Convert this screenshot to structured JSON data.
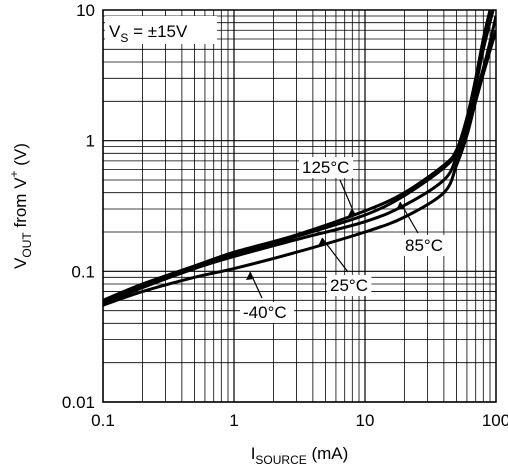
{
  "chart_data": {
    "type": "line",
    "x_scale": "log",
    "y_scale": "log",
    "xlim": [
      0.1,
      100
    ],
    "ylim": [
      0.01,
      10
    ],
    "xticks": [
      "0.1",
      "1",
      "10",
      "100"
    ],
    "yticks": [
      "0.01",
      "0.1",
      "1",
      "10"
    ],
    "xlabel": {
      "main": "I",
      "sub": "SOURCE",
      "suffix": " (mA)"
    },
    "ylabel": {
      "main": "V",
      "sub": "OUT",
      "middle": " from V",
      "sup": "+",
      "suffix": " (V)"
    },
    "grid": true,
    "annotation": {
      "main": "V",
      "sub": "S",
      "suffix": " = ±15V"
    },
    "series": [
      {
        "name": "125°C",
        "color": "#000000",
        "points": [
          [
            0.1,
            0.06
          ],
          [
            0.2,
            0.08
          ],
          [
            0.5,
            0.11
          ],
          [
            1,
            0.14
          ],
          [
            3,
            0.19
          ],
          [
            10,
            0.29
          ],
          [
            20,
            0.4
          ],
          [
            40,
            0.65
          ],
          [
            50,
            0.85
          ],
          [
            60,
            1.5
          ],
          [
            70,
            3.0
          ],
          [
            80,
            6.0
          ],
          [
            90,
            10.0
          ]
        ]
      },
      {
        "name": "85°C",
        "color": "#000000",
        "points": [
          [
            0.1,
            0.058
          ],
          [
            0.2,
            0.078
          ],
          [
            0.5,
            0.108
          ],
          [
            1,
            0.135
          ],
          [
            3,
            0.185
          ],
          [
            10,
            0.27
          ],
          [
            20,
            0.38
          ],
          [
            40,
            0.62
          ],
          [
            50,
            0.82
          ],
          [
            60,
            1.4
          ],
          [
            70,
            2.6
          ],
          [
            80,
            5.0
          ],
          [
            95,
            10.0
          ]
        ]
      },
      {
        "name": "25°C",
        "color": "#000000",
        "points": [
          [
            0.1,
            0.056
          ],
          [
            0.2,
            0.075
          ],
          [
            0.5,
            0.105
          ],
          [
            1,
            0.13
          ],
          [
            3,
            0.175
          ],
          [
            10,
            0.24
          ],
          [
            20,
            0.32
          ],
          [
            40,
            0.5
          ],
          [
            50,
            0.75
          ],
          [
            60,
            1.2
          ],
          [
            70,
            2.2
          ],
          [
            85,
            4.5
          ],
          [
            100,
            9.0
          ]
        ]
      },
      {
        "name": "-40°C",
        "color": "#000000",
        "points": [
          [
            0.1,
            0.055
          ],
          [
            0.2,
            0.07
          ],
          [
            0.5,
            0.09
          ],
          [
            1,
            0.105
          ],
          [
            3,
            0.14
          ],
          [
            10,
            0.2
          ],
          [
            20,
            0.26
          ],
          [
            40,
            0.4
          ],
          [
            50,
            0.65
          ],
          [
            60,
            1.1
          ],
          [
            70,
            2.0
          ],
          [
            85,
            4.0
          ],
          [
            100,
            7.0
          ]
        ]
      }
    ]
  }
}
